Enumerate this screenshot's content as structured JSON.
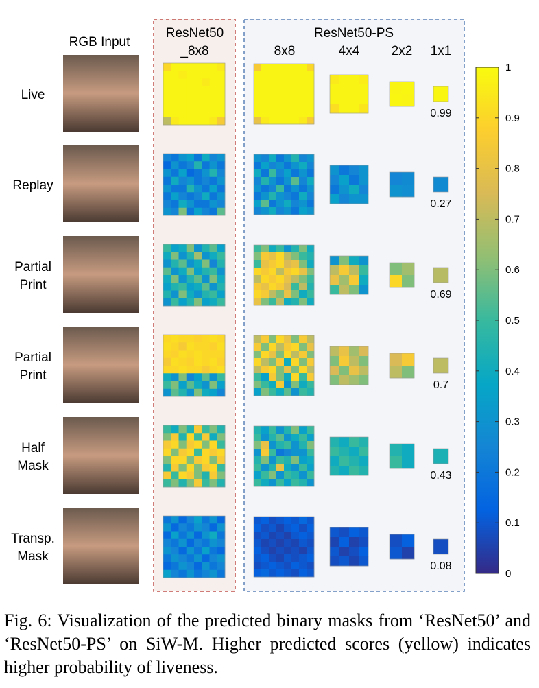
{
  "figure": {
    "rgb_header": "RGB Input",
    "resnet50_header": [
      "ResNet50",
      "_8x8"
    ],
    "ps_header": "ResNet50-PS",
    "ps_columns": [
      "8x8",
      "4x4",
      "2x2",
      "1x1"
    ],
    "colormap": [
      "#352a87",
      "#0363e1",
      "#1485d4",
      "#06a7c6",
      "#38b99e",
      "#92bf73",
      "#d9ba56",
      "#fcce2e",
      "#f9fb0e"
    ],
    "colorbar": {
      "range": [
        0,
        1
      ],
      "ticks": [
        0,
        0.1,
        0.2,
        0.3,
        0.4,
        0.5,
        0.6,
        0.7,
        0.8,
        0.9,
        1
      ]
    },
    "rows": [
      {
        "label": [
          "Live"
        ],
        "masks": {
          "resnet50_8x8": [
            0.9,
            0.98,
            0.98,
            0.98,
            0.98,
            0.98,
            0.98,
            0.95,
            0.98,
            0.98,
            0.96,
            0.98,
            0.98,
            0.98,
            0.98,
            0.98,
            0.98,
            0.98,
            0.98,
            0.98,
            0.98,
            0.95,
            0.98,
            0.98,
            0.98,
            0.98,
            0.98,
            0.98,
            0.98,
            0.98,
            0.98,
            0.98,
            0.98,
            0.98,
            0.98,
            0.98,
            0.98,
            0.98,
            0.98,
            0.98,
            0.98,
            0.98,
            0.98,
            0.98,
            0.98,
            0.98,
            0.98,
            0.98,
            0.98,
            0.98,
            0.98,
            0.98,
            0.98,
            0.98,
            0.98,
            0.98,
            0.7,
            0.95,
            0.98,
            0.98,
            0.98,
            0.98,
            0.95,
            0.85
          ],
          "ps_8x8": [
            0.85,
            0.98,
            0.98,
            0.98,
            0.98,
            0.98,
            0.98,
            0.9,
            0.98,
            0.98,
            0.98,
            0.98,
            0.98,
            0.98,
            0.98,
            0.98,
            0.98,
            0.98,
            0.98,
            0.98,
            0.98,
            0.98,
            0.98,
            0.98,
            0.98,
            0.98,
            0.98,
            0.98,
            0.98,
            0.98,
            0.98,
            0.98,
            0.98,
            0.98,
            0.98,
            0.98,
            0.98,
            0.98,
            0.98,
            0.98,
            0.98,
            0.98,
            0.98,
            0.98,
            0.98,
            0.98,
            0.98,
            0.98,
            0.98,
            0.98,
            0.98,
            0.98,
            0.98,
            0.98,
            0.98,
            0.98,
            0.8,
            0.95,
            0.98,
            0.98,
            0.98,
            0.98,
            0.95,
            0.85
          ],
          "ps_4x4": [
            0.95,
            0.98,
            0.98,
            0.96,
            0.98,
            0.98,
            0.98,
            0.98,
            0.98,
            0.98,
            0.98,
            0.98,
            0.92,
            0.98,
            0.98,
            0.94
          ],
          "ps_2x2": [
            0.98,
            0.99,
            0.99,
            0.98
          ],
          "ps_1x1": 0.99
        }
      },
      {
        "label": [
          "Replay"
        ],
        "masks": {
          "resnet50_8x8": [
            0.25,
            0.2,
            0.3,
            0.35,
            0.2,
            0.4,
            0.25,
            0.3,
            0.15,
            0.3,
            0.2,
            0.25,
            0.45,
            0.2,
            0.3,
            0.2,
            0.3,
            0.2,
            0.35,
            0.15,
            0.2,
            0.3,
            0.45,
            0.25,
            0.2,
            0.4,
            0.25,
            0.3,
            0.2,
            0.25,
            0.2,
            0.3,
            0.3,
            0.2,
            0.2,
            0.45,
            0.3,
            0.2,
            0.35,
            0.2,
            0.2,
            0.35,
            0.25,
            0.2,
            0.25,
            0.4,
            0.2,
            0.3,
            0.25,
            0.2,
            0.4,
            0.3,
            0.2,
            0.2,
            0.3,
            0.25,
            0.3,
            0.25,
            0.6,
            0.2,
            0.35,
            0.25,
            0.2,
            0.55
          ],
          "ps_8x8": [
            0.3,
            0.25,
            0.4,
            0.2,
            0.3,
            0.45,
            0.25,
            0.3,
            0.2,
            0.35,
            0.25,
            0.3,
            0.2,
            0.3,
            0.4,
            0.25,
            0.4,
            0.2,
            0.5,
            0.25,
            0.35,
            0.2,
            0.3,
            0.2,
            0.25,
            0.45,
            0.3,
            0.2,
            0.3,
            0.55,
            0.25,
            0.4,
            0.3,
            0.2,
            0.25,
            0.5,
            0.2,
            0.3,
            0.2,
            0.3,
            0.2,
            0.3,
            0.45,
            0.3,
            0.25,
            0.2,
            0.4,
            0.25,
            0.35,
            0.55,
            0.2,
            0.3,
            0.4,
            0.25,
            0.3,
            0.2,
            0.25,
            0.3,
            0.4,
            0.25,
            0.3,
            0.2,
            0.35,
            0.3
          ],
          "ps_4x4": [
            0.3,
            0.2,
            0.25,
            0.3,
            0.25,
            0.35,
            0.2,
            0.3,
            0.2,
            0.3,
            0.4,
            0.25,
            0.35,
            0.25,
            0.3,
            0.3
          ],
          "ps_2x2": [
            0.25,
            0.27,
            0.3,
            0.28
          ],
          "ps_1x1": 0.27
        }
      },
      {
        "label": [
          "Partial",
          "Print"
        ],
        "masks": {
          "resnet50_8x8": [
            0.5,
            0.35,
            0.4,
            0.6,
            0.3,
            0.45,
            0.55,
            0.35,
            0.4,
            0.6,
            0.3,
            0.45,
            0.65,
            0.3,
            0.4,
            0.5,
            0.3,
            0.45,
            0.55,
            0.3,
            0.4,
            0.6,
            0.25,
            0.45,
            0.55,
            0.3,
            0.4,
            0.6,
            0.35,
            0.45,
            0.5,
            0.3,
            0.4,
            0.6,
            0.3,
            0.45,
            0.55,
            0.3,
            0.6,
            0.4,
            0.35,
            0.45,
            0.5,
            0.35,
            0.4,
            0.55,
            0.3,
            0.45,
            0.45,
            0.3,
            0.6,
            0.4,
            0.3,
            0.45,
            0.5,
            0.35,
            0.3,
            0.5,
            0.35,
            0.45,
            0.6,
            0.35,
            0.4,
            0.5
          ],
          "ps_8x8": [
            0.5,
            0.6,
            0.4,
            0.5,
            0.3,
            0.45,
            0.6,
            0.4,
            0.6,
            0.85,
            0.8,
            0.9,
            0.7,
            0.6,
            0.5,
            0.45,
            0.5,
            0.8,
            0.85,
            0.9,
            0.75,
            0.8,
            0.6,
            0.4,
            0.9,
            0.85,
            0.9,
            0.7,
            0.85,
            0.9,
            0.8,
            0.6,
            0.7,
            0.9,
            0.85,
            0.9,
            0.8,
            0.7,
            0.6,
            0.5,
            0.85,
            0.8,
            0.9,
            0.85,
            0.75,
            0.5,
            0.7,
            0.45,
            0.9,
            0.85,
            0.7,
            0.6,
            0.8,
            0.6,
            0.4,
            0.5,
            0.8,
            0.6,
            0.5,
            0.7,
            0.4,
            0.45,
            0.6,
            0.4
          ],
          "ps_4x4": [
            0.3,
            0.6,
            0.4,
            0.3,
            0.7,
            0.85,
            0.7,
            0.5,
            0.8,
            0.65,
            0.85,
            0.4,
            0.5,
            0.7,
            0.6,
            0.3
          ],
          "ps_2x2": [
            0.6,
            0.65,
            0.9,
            0.6
          ],
          "ps_1x1": 0.69
        }
      },
      {
        "label": [
          "Partial",
          "Print"
        ],
        "masks": {
          "resnet50_8x8": [
            0.9,
            0.92,
            0.9,
            0.9,
            0.88,
            0.9,
            0.92,
            0.9,
            0.92,
            0.9,
            0.85,
            0.92,
            0.9,
            0.9,
            0.88,
            0.92,
            0.9,
            0.88,
            0.92,
            0.9,
            0.92,
            0.9,
            0.9,
            0.9,
            0.85,
            0.92,
            0.9,
            0.88,
            0.92,
            0.9,
            0.92,
            0.88,
            0.9,
            0.9,
            0.92,
            0.9,
            0.9,
            0.85,
            0.9,
            0.92,
            0.4,
            0.3,
            0.6,
            0.25,
            0.35,
            0.55,
            0.3,
            0.5,
            0.5,
            0.6,
            0.35,
            0.55,
            0.4,
            0.3,
            0.6,
            0.35,
            0.3,
            0.55,
            0.45,
            0.3,
            0.6,
            0.4,
            0.35,
            0.25
          ],
          "ps_8x8": [
            0.7,
            0.85,
            0.6,
            0.9,
            0.8,
            0.6,
            0.85,
            0.7,
            0.85,
            0.6,
            0.9,
            0.7,
            0.85,
            0.9,
            0.6,
            0.8,
            0.6,
            0.9,
            0.8,
            0.6,
            0.9,
            0.7,
            0.85,
            0.6,
            0.9,
            0.7,
            0.6,
            0.85,
            0.4,
            0.9,
            0.6,
            0.85,
            0.7,
            0.85,
            0.9,
            0.6,
            0.8,
            0.6,
            0.9,
            0.7,
            0.5,
            0.35,
            0.85,
            0.6,
            0.4,
            0.9,
            0.5,
            0.85,
            0.6,
            0.5,
            0.4,
            0.85,
            0.3,
            0.6,
            0.4,
            0.5,
            0.35,
            0.6,
            0.5,
            0.4,
            0.55,
            0.3,
            0.5,
            0.45
          ],
          "ps_4x4": [
            0.7,
            0.8,
            0.65,
            0.75,
            0.6,
            0.85,
            0.7,
            0.6,
            0.75,
            0.6,
            0.8,
            0.7,
            0.6,
            0.7,
            0.65,
            0.6
          ],
          "ps_2x2": [
            0.75,
            0.85,
            0.7,
            0.6
          ],
          "ps_1x1": 0.7
        }
      },
      {
        "label": [
          "Half",
          "Mask"
        ],
        "masks": {
          "resnet50_8x8": [
            0.5,
            0.4,
            0.6,
            0.45,
            0.85,
            0.5,
            0.6,
            0.45,
            0.6,
            0.85,
            0.45,
            0.9,
            0.5,
            0.85,
            0.4,
            0.6,
            0.85,
            0.9,
            0.6,
            0.85,
            0.9,
            0.6,
            0.9,
            0.5,
            0.9,
            0.6,
            0.85,
            0.9,
            0.5,
            0.9,
            0.85,
            0.9,
            0.6,
            0.9,
            0.9,
            0.6,
            0.85,
            0.9,
            0.6,
            0.85,
            0.45,
            0.85,
            0.6,
            0.9,
            0.6,
            0.85,
            0.9,
            0.5,
            0.85,
            0.5,
            0.9,
            0.85,
            0.6,
            0.45,
            0.85,
            0.6,
            0.5,
            0.6,
            0.45,
            0.6,
            0.85,
            0.5,
            0.6,
            0.45
          ],
          "ps_8x8": [
            0.45,
            0.35,
            0.5,
            0.3,
            0.45,
            0.6,
            0.35,
            0.5,
            0.5,
            0.3,
            0.45,
            0.55,
            0.3,
            0.4,
            0.5,
            0.35,
            0.6,
            0.8,
            0.3,
            0.45,
            0.5,
            0.3,
            0.45,
            0.6,
            0.3,
            0.85,
            0.5,
            0.2,
            0.25,
            0.3,
            0.3,
            0.5,
            0.45,
            0.6,
            0.3,
            0.5,
            0.45,
            0.6,
            0.35,
            0.4,
            0.5,
            0.3,
            0.45,
            0.8,
            0.4,
            0.3,
            0.5,
            0.35,
            0.35,
            0.5,
            0.6,
            0.3,
            0.5,
            0.45,
            0.3,
            0.5,
            0.5,
            0.4,
            0.3,
            0.5,
            0.35,
            0.5,
            0.45,
            0.3
          ],
          "ps_4x4": [
            0.45,
            0.4,
            0.5,
            0.45,
            0.5,
            0.45,
            0.4,
            0.5,
            0.4,
            0.5,
            0.45,
            0.4,
            0.45,
            0.4,
            0.5,
            0.45
          ],
          "ps_2x2": [
            0.45,
            0.4,
            0.5,
            0.4
          ],
          "ps_1x1": 0.43
        }
      },
      {
        "label": [
          "Transp.",
          "Mask"
        ],
        "masks": {
          "resnet50_8x8": [
            0.2,
            0.3,
            0.15,
            0.25,
            0.35,
            0.2,
            0.3,
            0.15,
            0.3,
            0.15,
            0.25,
            0.2,
            0.3,
            0.25,
            0.15,
            0.3,
            0.15,
            0.35,
            0.2,
            0.3,
            0.15,
            0.3,
            0.4,
            0.2,
            0.25,
            0.2,
            0.3,
            0.15,
            0.25,
            0.2,
            0.3,
            0.25,
            0.3,
            0.25,
            0.15,
            0.3,
            0.2,
            0.35,
            0.2,
            0.15,
            0.2,
            0.3,
            0.25,
            0.2,
            0.3,
            0.15,
            0.25,
            0.3,
            0.15,
            0.2,
            0.3,
            0.25,
            0.15,
            0.3,
            0.2,
            0.25,
            0.35,
            0.25,
            0.2,
            0.3,
            0.2,
            0.25,
            0.3,
            0.2
          ],
          "ps_8x8": [
            0.1,
            0.12,
            0.08,
            0.1,
            0.12,
            0.1,
            0.15,
            0.1,
            0.12,
            0.08,
            0.1,
            0.06,
            0.1,
            0.12,
            0.08,
            0.12,
            0.08,
            0.1,
            0.06,
            0.08,
            0.05,
            0.1,
            0.12,
            0.1,
            0.1,
            0.06,
            0.08,
            0.05,
            0.08,
            0.06,
            0.1,
            0.08,
            0.12,
            0.08,
            0.05,
            0.08,
            0.06,
            0.08,
            0.05,
            0.1,
            0.1,
            0.12,
            0.08,
            0.06,
            0.1,
            0.08,
            0.1,
            0.12,
            0.08,
            0.1,
            0.12,
            0.1,
            0.08,
            0.12,
            0.1,
            0.08,
            0.12,
            0.15,
            0.1,
            0.12,
            0.1,
            0.08,
            0.12,
            0.1
          ],
          "ps_4x4": [
            0.1,
            0.08,
            0.12,
            0.1,
            0.06,
            0.12,
            0.05,
            0.08,
            0.1,
            0.05,
            0.08,
            0.12,
            0.08,
            0.1,
            0.06,
            0.1
          ],
          "ps_2x2": [
            0.08,
            0.12,
            0.1,
            0.05
          ],
          "ps_1x1": 0.08
        }
      }
    ],
    "caption": "Fig. 6: Visualization of the predicted binary masks from ‘ResNet50’ and ‘ResNet50-PS’ on SiW-M. Higher predicted scores (yellow) indicates higher probability of liveness."
  }
}
